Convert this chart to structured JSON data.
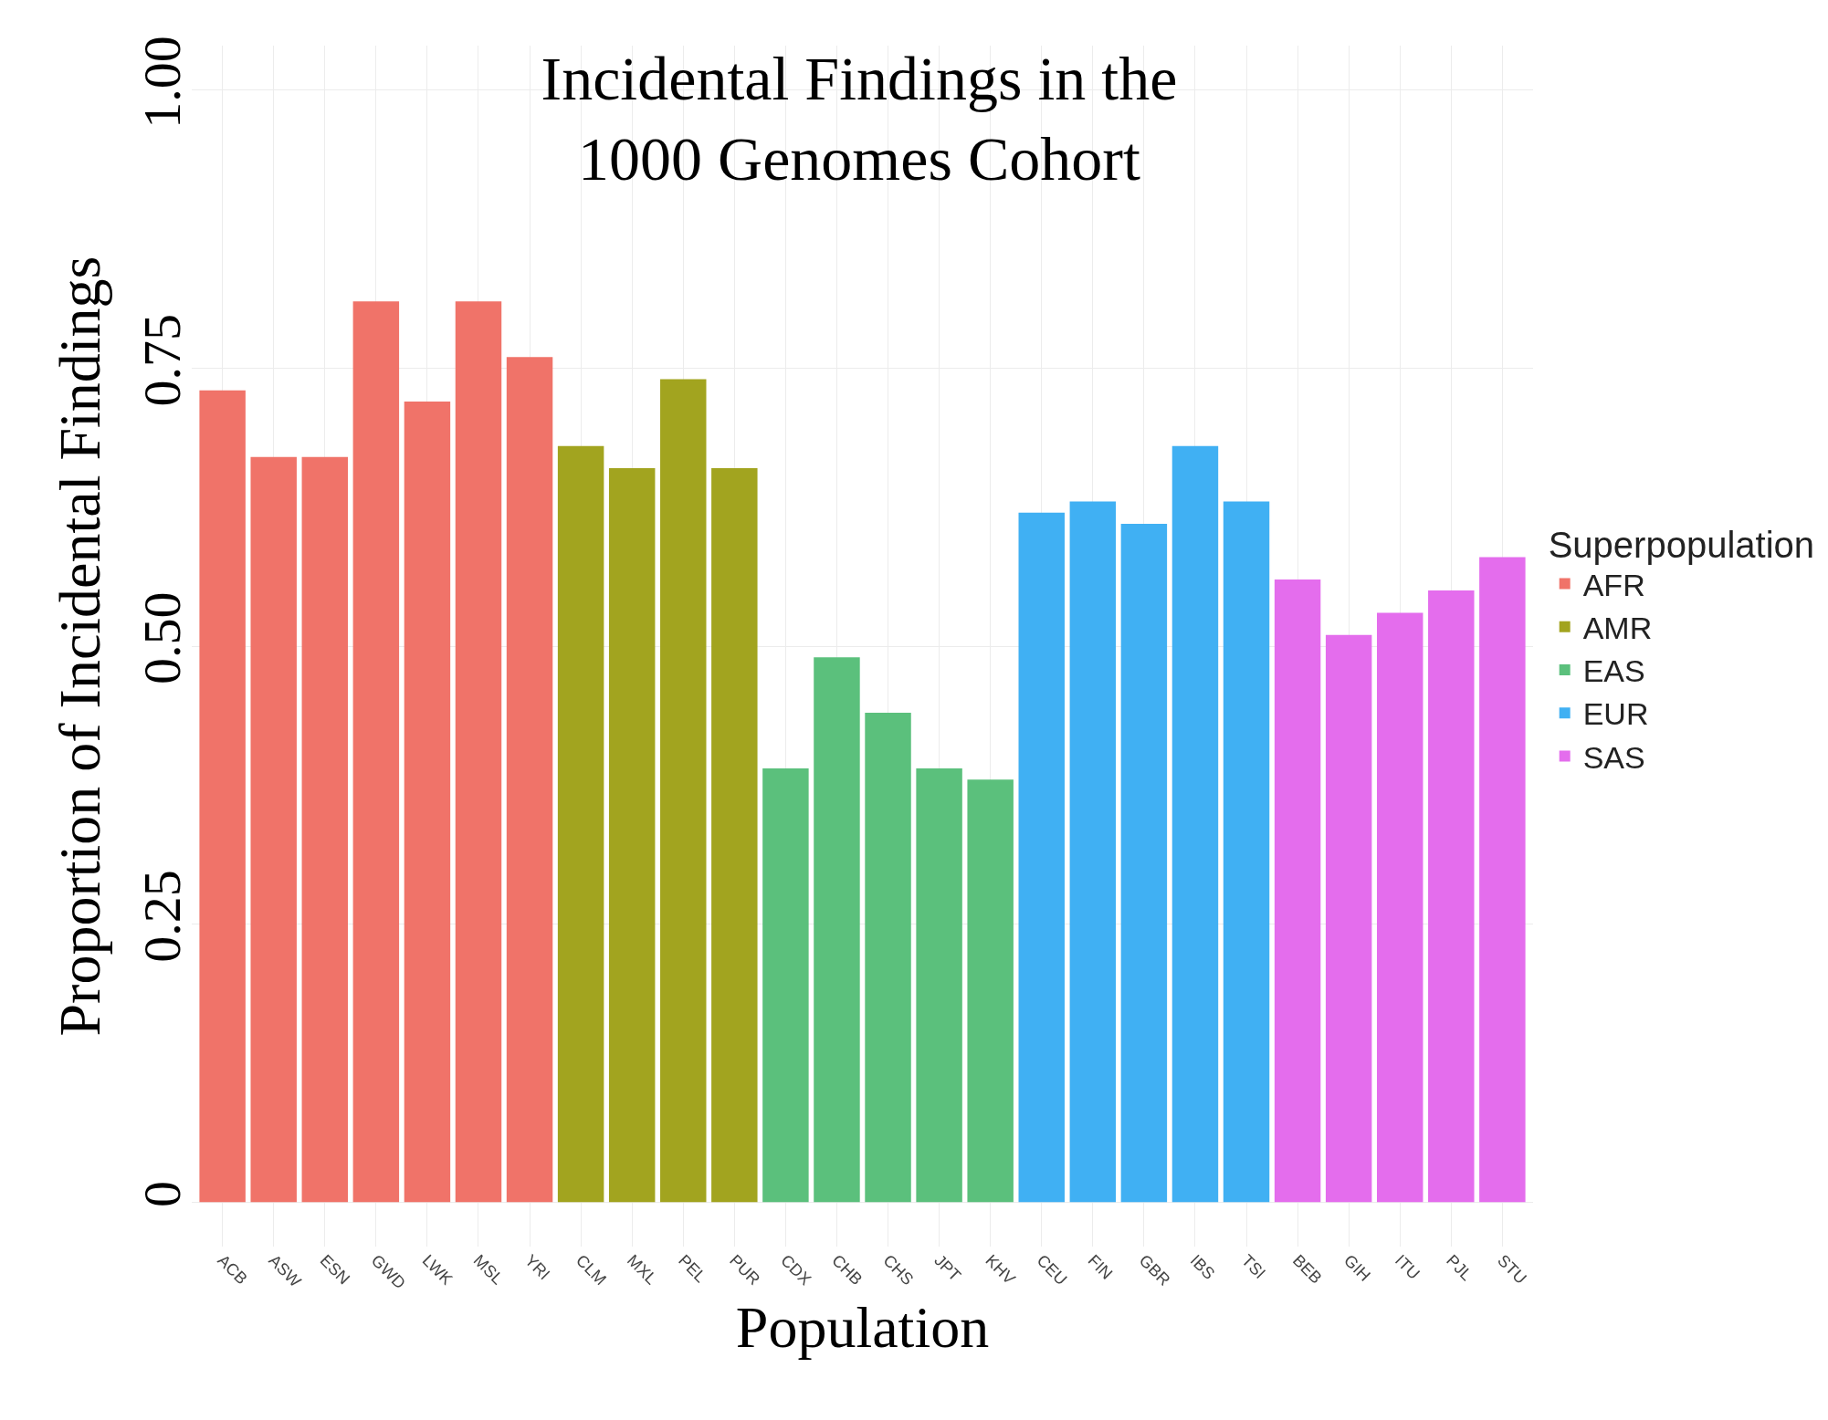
{
  "chart_data": {
    "type": "bar",
    "title": "Incidental Findings in the\n1000 Genomes Cohort",
    "xlabel": "Population",
    "ylabel": "Proportion of Incidental Findings",
    "legend_title": "Superpopulation",
    "categories": [
      "ACB",
      "ASW",
      "ESN",
      "GWD",
      "LWK",
      "MSL",
      "YRI",
      "CLM",
      "MXL",
      "PEL",
      "PUR",
      "CDX",
      "CHB",
      "CHS",
      "JPT",
      "KHV",
      "CEU",
      "FIN",
      "GBR",
      "IBS",
      "TSI",
      "BEB",
      "GIH",
      "ITU",
      "PJL",
      "STU"
    ],
    "series": [
      {
        "name": "AFR",
        "color": "#f07369",
        "values": [
          0.73,
          0.67,
          0.67,
          0.81,
          0.72,
          0.81,
          0.76,
          null,
          null,
          null,
          null,
          null,
          null,
          null,
          null,
          null,
          null,
          null,
          null,
          null,
          null,
          null,
          null,
          null,
          null,
          null
        ]
      },
      {
        "name": "AMR",
        "color": "#a2a41f",
        "values": [
          null,
          null,
          null,
          null,
          null,
          null,
          null,
          0.68,
          0.66,
          0.74,
          0.66,
          null,
          null,
          null,
          null,
          null,
          null,
          null,
          null,
          null,
          null,
          null,
          null,
          null,
          null,
          null
        ]
      },
      {
        "name": "EAS",
        "color": "#5bc07c",
        "values": [
          null,
          null,
          null,
          null,
          null,
          null,
          null,
          null,
          null,
          null,
          null,
          0.39,
          0.49,
          0.44,
          0.39,
          0.38,
          null,
          null,
          null,
          null,
          null,
          null,
          null,
          null,
          null,
          null
        ]
      },
      {
        "name": "EUR",
        "color": "#40b0f3",
        "values": [
          null,
          null,
          null,
          null,
          null,
          null,
          null,
          null,
          null,
          null,
          null,
          null,
          null,
          null,
          null,
          null,
          0.62,
          0.63,
          0.61,
          0.68,
          0.63,
          null,
          null,
          null,
          null,
          null
        ]
      },
      {
        "name": "SAS",
        "color": "#e46ded",
        "values": [
          null,
          null,
          null,
          null,
          null,
          null,
          null,
          null,
          null,
          null,
          null,
          null,
          null,
          null,
          null,
          null,
          null,
          null,
          null,
          null,
          null,
          0.56,
          0.51,
          0.53,
          0.55,
          0.58
        ]
      }
    ],
    "ylim": [
      -0.04,
      1.04
    ],
    "yticks": [
      {
        "value": 0,
        "label": "0"
      },
      0.25,
      {
        "value": 0.5,
        "label": "0.50"
      },
      0.75,
      {
        "value": 1,
        "label": "1.00"
      }
    ],
    "grid": true,
    "legend": "right"
  }
}
